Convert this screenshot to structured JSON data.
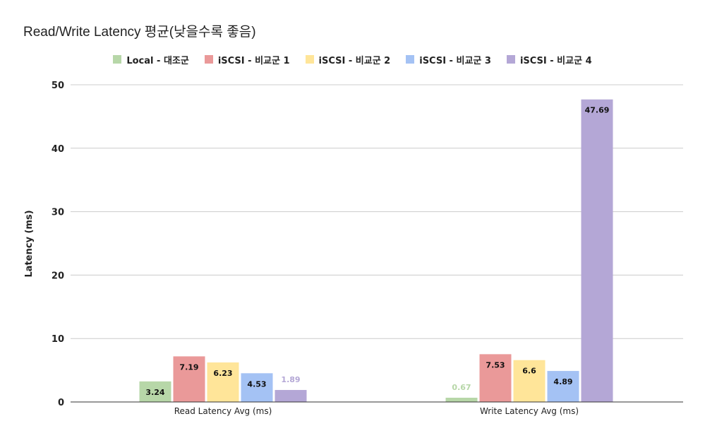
{
  "chart_data": {
    "type": "bar",
    "title": "Read/Write Latency 평균(낮을수록 좋음)",
    "xlabel": "",
    "ylabel": "Latency (ms)",
    "ylim": [
      0,
      50
    ],
    "yticks": [
      0,
      10,
      20,
      30,
      40,
      50
    ],
    "grid": true,
    "legend_position": "top",
    "categories": [
      "Read Latency Avg (ms)",
      "Write Latency Avg (ms)"
    ],
    "series": [
      {
        "name": "Local - 대조군",
        "color": "#b7d7a8",
        "label_color": "#b7d7a8",
        "values": [
          3.24,
          0.67
        ],
        "labels": [
          "3.24",
          "0.67"
        ],
        "label_inside": [
          true,
          false
        ]
      },
      {
        "name": "iSCSI - 비교군 1",
        "color": "#ea9999",
        "label_color": "#000000",
        "values": [
          7.19,
          7.53
        ],
        "labels": [
          "7.19",
          "7.53"
        ],
        "label_inside": [
          true,
          true
        ]
      },
      {
        "name": "iSCSI - 비교군 2",
        "color": "#ffe599",
        "label_color": "#000000",
        "values": [
          6.23,
          6.6
        ],
        "labels": [
          "6.23",
          "6.6"
        ],
        "label_inside": [
          true,
          true
        ]
      },
      {
        "name": "iSCSI - 비교군 3",
        "color": "#a4c2f4",
        "label_color": "#000000",
        "values": [
          4.53,
          4.89
        ],
        "labels": [
          "4.53",
          "4.89"
        ],
        "label_inside": [
          true,
          true
        ]
      },
      {
        "name": "iSCSI - 비교군 4",
        "color": "#b4a7d6",
        "label_color": "#b4a7d6",
        "values": [
          1.89,
          47.69
        ],
        "labels": [
          "1.89",
          "47.69"
        ],
        "label_inside": [
          false,
          true
        ]
      }
    ]
  }
}
